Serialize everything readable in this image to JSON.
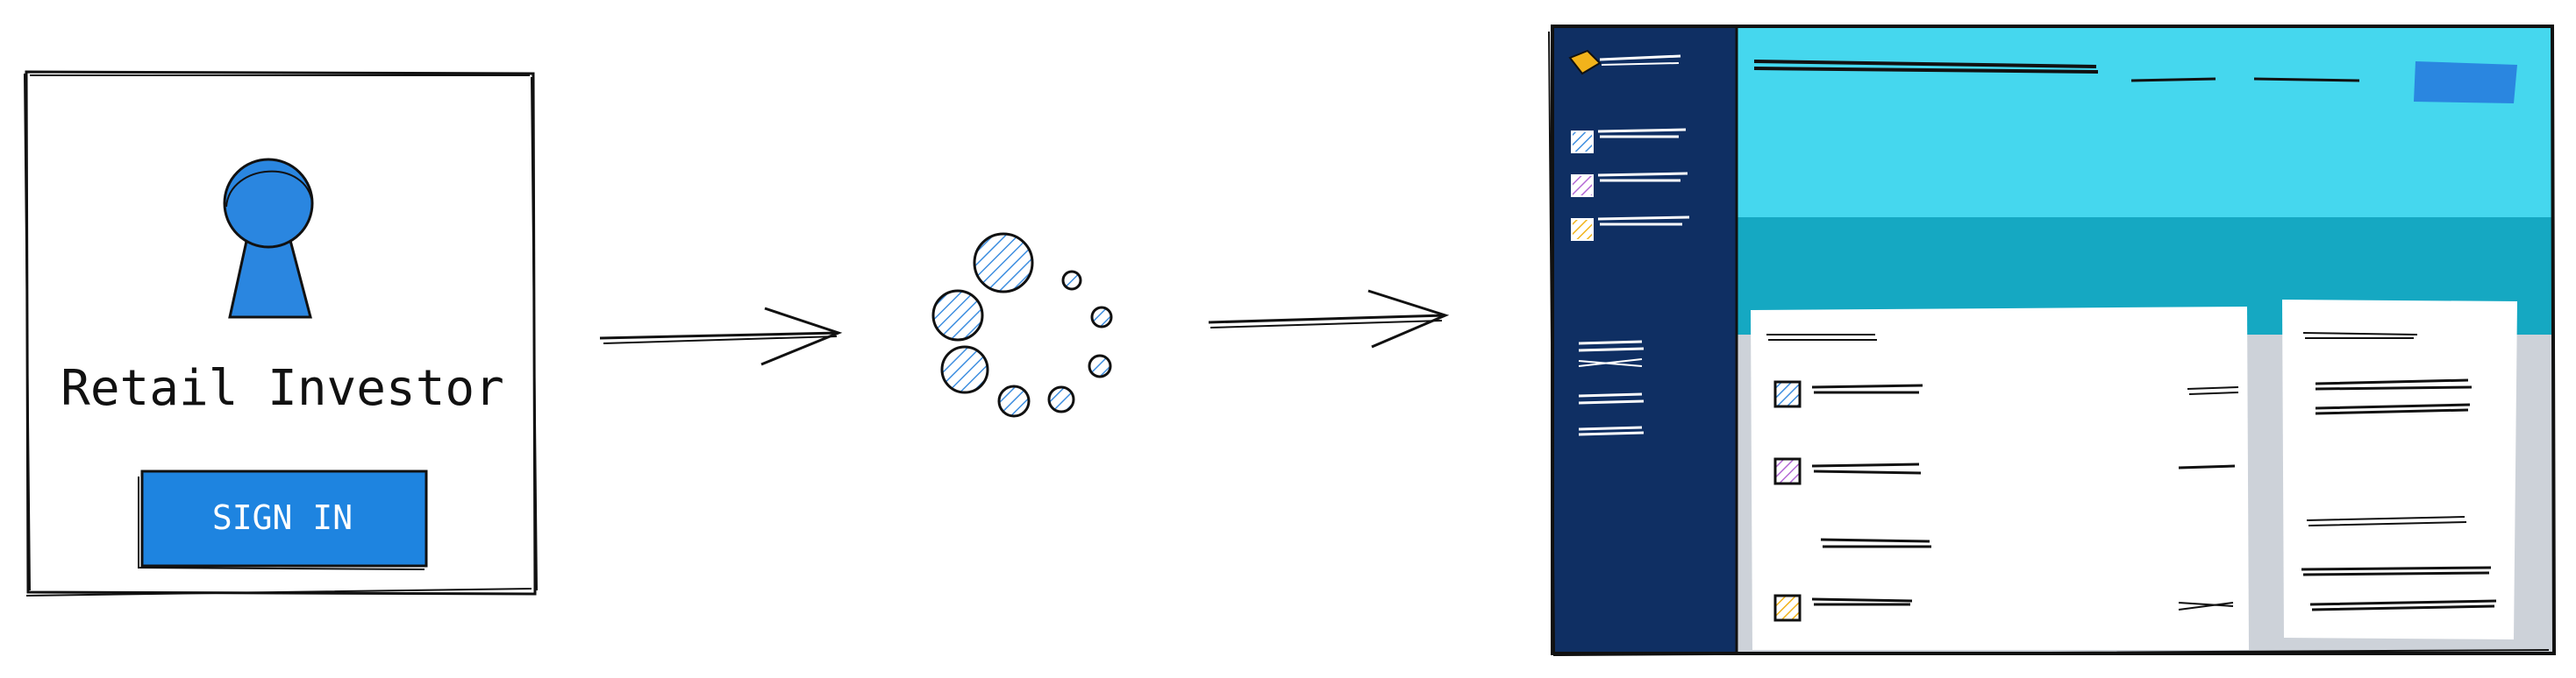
{
  "login_card": {
    "title": "Retail Investor",
    "button_label": "SIGN IN"
  },
  "colors": {
    "ink": "#111111",
    "user_blue": "#2a86e0",
    "button_blue": "#1e84e0",
    "sidebar_navy": "#0f2f63",
    "header_cyan": "#45d7ee",
    "band_teal": "#15a8c2",
    "content_gray": "#cdd2d9",
    "accent_yellow": "#f2b31b",
    "accent_purple": "#b46ad6",
    "accent_blue": "#3f8fe0"
  },
  "icons": {
    "user": "user-avatar-icon",
    "spinner": "loading-spinner-icon",
    "arrow": "right-arrow-icon",
    "logo": "brand-logo-icon"
  }
}
